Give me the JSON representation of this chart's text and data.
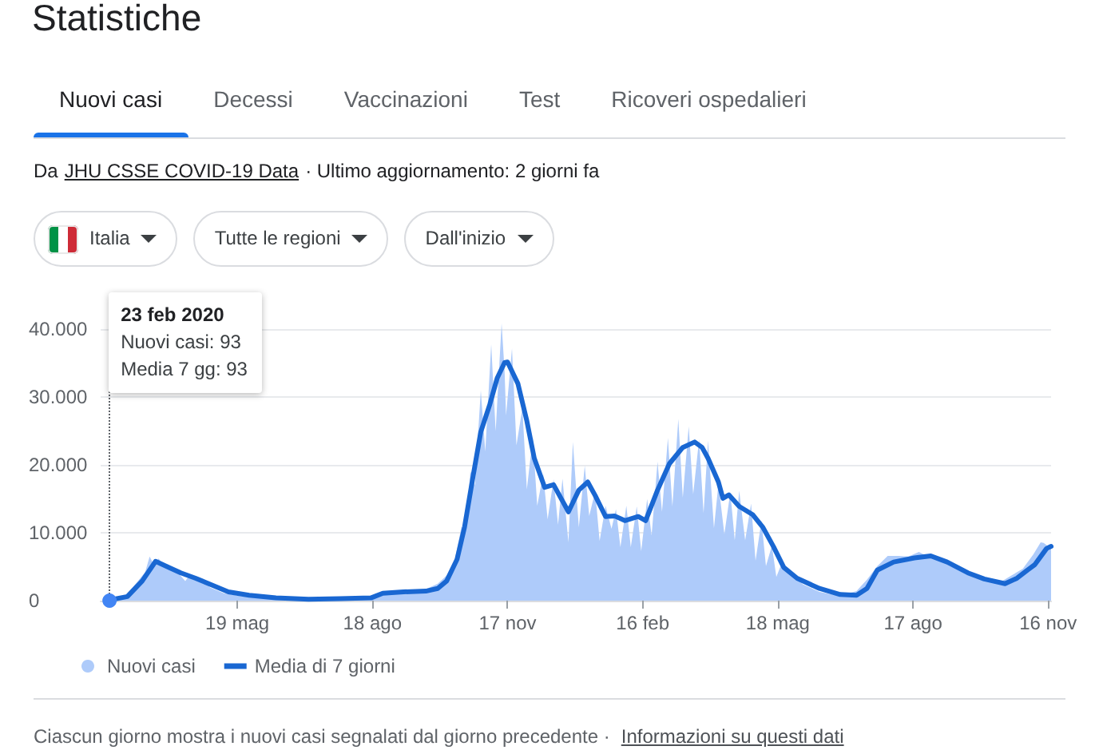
{
  "chart_data": {
    "type": "line",
    "title": "Statistiche",
    "annotations": [
      "Nuovi casi",
      "Decessi",
      "Vaccinazioni",
      "Test",
      "Ricoveri ospedalieri",
      "Da",
      "JHU CSSE COVID-19 Data",
      "· Ultimo aggiornamento: 2 giorni fa",
      "Italia",
      "Tutte le regioni",
      "Dall'inizio",
      "23 feb 2020\nNuovi casi: 93\nMedia 7 gg: 93",
      "Ciascun giorno mostra i nuovi casi segnalati dal giorno precedente ·",
      "Informazioni su questi dati"
    ],
    "xlim": [
      "2020-02-17",
      "2021-11-18"
    ],
    "xticks": [
      {
        "value": "2020-05-19",
        "label": "19 mag"
      },
      {
        "value": "2020-08-18",
        "label": "18 ago"
      },
      {
        "value": "2020-11-17",
        "label": "17 nov"
      },
      {
        "value": "2021-02-16",
        "label": "16 feb"
      },
      {
        "value": "2021-05-18",
        "label": "18 mag"
      },
      {
        "value": "2021-08-17",
        "label": "17 ago"
      },
      {
        "value": "2021-11-16",
        "label": "16 nov"
      }
    ],
    "ylim": [
      0,
      45000
    ],
    "yticks": [
      0,
      {
        "value": 10000,
        "label": "10.000"
      },
      {
        "value": 20000,
        "label": "20.000"
      },
      {
        "value": 30000,
        "label": "30.000"
      },
      {
        "value": 40000,
        "label": "40.000"
      }
    ],
    "grid": "y",
    "legend": "bottom left",
    "marker": "none",
    "line_style": "solid",
    "ref_lines": [
      {
        "axis": "x",
        "value": "2020-02-23",
        "line_style": "dotted",
        "color": "#5f6368"
      }
    ],
    "series": [
      {
        "name": "Nuovi casi",
        "type": "area",
        "color": "#aecbfa",
        "x": [
          "2020-02-23",
          "2020-03-05",
          "2020-03-12",
          "2020-03-18",
          "2020-03-21",
          "2020-03-24",
          "2020-03-27",
          "2020-04-01",
          "2020-04-04",
          "2020-04-10",
          "2020-04-14",
          "2020-04-17",
          "2020-04-25",
          "2020-05-01",
          "2020-05-10",
          "2020-05-20",
          "2020-06-01",
          "2020-06-20",
          "2020-07-10",
          "2020-07-30",
          "2020-08-15",
          "2020-08-25",
          "2020-09-08",
          "2020-09-22",
          "2020-10-01",
          "2020-10-07",
          "2020-10-12",
          "2020-10-17",
          "2020-10-20",
          "2020-10-23",
          "2020-10-26",
          "2020-10-30",
          "2020-11-02",
          "2020-11-06",
          "2020-11-09",
          "2020-11-13",
          "2020-11-15",
          "2020-11-16",
          "2020-11-20",
          "2020-11-23",
          "2020-11-27",
          "2020-11-30",
          "2020-12-04",
          "2020-12-07",
          "2020-12-11",
          "2020-12-14",
          "2020-12-18",
          "2020-12-21",
          "2020-12-24",
          "2020-12-28",
          "2020-12-31",
          "2021-01-04",
          "2021-01-08",
          "2021-01-11",
          "2021-01-15",
          "2021-01-18",
          "2021-01-22",
          "2021-01-26",
          "2021-01-29",
          "2021-02-01",
          "2021-02-05",
          "2021-02-08",
          "2021-02-12",
          "2021-02-15",
          "2021-02-19",
          "2021-02-22",
          "2021-02-26",
          "2021-03-01",
          "2021-03-05",
          "2021-03-08",
          "2021-03-12",
          "2021-03-15",
          "2021-03-19",
          "2021-03-22",
          "2021-03-26",
          "2021-03-29",
          "2021-04-01",
          "2021-04-05",
          "2021-04-08",
          "2021-04-12",
          "2021-04-16",
          "2021-04-19",
          "2021-04-22",
          "2021-04-26",
          "2021-04-30",
          "2021-05-03",
          "2021-05-07",
          "2021-05-10",
          "2021-05-14",
          "2021-05-17",
          "2021-05-21",
          "2021-05-27",
          "2021-06-04",
          "2021-06-15",
          "2021-06-28",
          "2021-07-10",
          "2021-07-17",
          "2021-07-24",
          "2021-07-31",
          "2021-08-07",
          "2021-08-14",
          "2021-08-21",
          "2021-08-28",
          "2021-09-04",
          "2021-09-11",
          "2021-09-18",
          "2021-09-25",
          "2021-10-02",
          "2021-10-09",
          "2021-10-16",
          "2021-10-23",
          "2021-10-30",
          "2021-11-06",
          "2021-11-11",
          "2021-11-13",
          "2021-11-18"
        ],
        "values": [
          93,
          800,
          2600,
          4200,
          6500,
          5200,
          6200,
          4800,
          4800,
          3900,
          2900,
          3800,
          3000,
          1900,
          1100,
          700,
          400,
          300,
          200,
          400,
          600,
          1300,
          1400,
          1600,
          2500,
          3700,
          5500,
          10900,
          10800,
          19100,
          17000,
          31000,
          22000,
          37800,
          25000,
          40900,
          33900,
          27300,
          37200,
          22900,
          28400,
          16400,
          24100,
          14000,
          18700,
          12000,
          17900,
          11200,
          18000,
          8600,
          23400,
          10800,
          19900,
          12500,
          16100,
          8800,
          14000,
          10600,
          13500,
          7900,
          14000,
          7900,
          13900,
          7300,
          15000,
          9600,
          20500,
          13100,
          24000,
          13900,
          26800,
          15200,
          25700,
          15700,
          23800,
          12900,
          23600,
          10700,
          17200,
          9800,
          16000,
          8900,
          16200,
          8900,
          14300,
          5900,
          11800,
          5100,
          8100,
          3500,
          5700,
          3900,
          2400,
          1300,
          700,
          1400,
          3100,
          5100,
          6600,
          6600,
          6500,
          7200,
          6400,
          6200,
          5100,
          4600,
          3800,
          3300,
          3000,
          2900,
          3800,
          4700,
          6800,
          8600,
          8500,
          7700
        ]
      },
      {
        "name": "Media di 7 giorni",
        "color": "#1967d2",
        "x": [
          "2020-02-23",
          "2020-03-06",
          "2020-03-16",
          "2020-03-25",
          "2020-04-03",
          "2020-04-11",
          "2020-04-21",
          "2020-05-02",
          "2020-05-13",
          "2020-05-27",
          "2020-06-14",
          "2020-07-06",
          "2020-07-27",
          "2020-08-17",
          "2020-08-25",
          "2020-09-08",
          "2020-09-23",
          "2020-10-01",
          "2020-10-07",
          "2020-10-14",
          "2020-10-19",
          "2020-10-25",
          "2020-10-30",
          "2020-11-05",
          "2020-11-10",
          "2020-11-15",
          "2020-11-17",
          "2020-11-24",
          "2020-11-30",
          "2020-12-05",
          "2020-12-12",
          "2020-12-18",
          "2020-12-23",
          "2020-12-28",
          "2021-01-04",
          "2021-01-10",
          "2021-01-15",
          "2021-01-22",
          "2021-01-28",
          "2021-02-04",
          "2021-02-13",
          "2021-02-18",
          "2021-02-26",
          "2021-03-06",
          "2021-03-15",
          "2021-03-23",
          "2021-03-28",
          "2021-04-01",
          "2021-04-08",
          "2021-04-11",
          "2021-04-15",
          "2021-04-22",
          "2021-05-01",
          "2021-05-08",
          "2021-05-15",
          "2021-05-22",
          "2021-05-31",
          "2021-06-15",
          "2021-06-29",
          "2021-07-10",
          "2021-07-17",
          "2021-07-24",
          "2021-08-04",
          "2021-08-18",
          "2021-08-29",
          "2021-09-09",
          "2021-09-23",
          "2021-10-04",
          "2021-10-18",
          "2021-10-26",
          "2021-11-02",
          "2021-11-07",
          "2021-11-15",
          "2021-11-18"
        ],
        "values": [
          93,
          600,
          2900,
          5800,
          4900,
          4100,
          3300,
          2300,
          1300,
          800,
          400,
          200,
          300,
          400,
          1100,
          1300,
          1400,
          1800,
          2900,
          6100,
          10800,
          18600,
          24900,
          28900,
          32800,
          35100,
          35200,
          32000,
          26500,
          21000,
          16700,
          17100,
          15100,
          13100,
          16300,
          17500,
          15500,
          12400,
          12500,
          11800,
          12400,
          11800,
          16300,
          20200,
          22600,
          23400,
          22600,
          21000,
          17500,
          15100,
          15600,
          13900,
          12700,
          10800,
          8000,
          4900,
          3300,
          1800,
          900,
          800,
          1800,
          4500,
          5700,
          6300,
          6600,
          5700,
          4100,
          3200,
          2500,
          3300,
          4500,
          5300,
          7700,
          8000
        ]
      }
    ]
  }
}
